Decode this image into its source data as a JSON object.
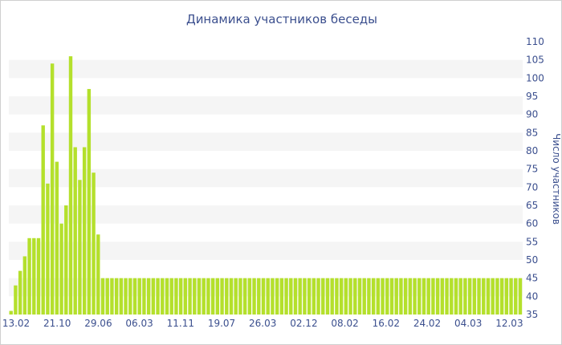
{
  "chart_data": {
    "type": "bar",
    "title": "Динамика участников беседы",
    "xlabel": "",
    "ylabel": "Число участников",
    "ylim": [
      35,
      110
    ],
    "y_ticks": [
      35,
      40,
      45,
      50,
      55,
      60,
      65,
      70,
      75,
      80,
      85,
      90,
      95,
      100,
      105,
      110
    ],
    "y_axis_position": "right",
    "grid": "alternating horizontal bands",
    "x_ticks": [
      "13.02",
      "21.10",
      "29.06",
      "06.03",
      "11.11",
      "19.07",
      "26.03",
      "02.12",
      "08.02",
      "16.02",
      "24.02",
      "04.03",
      "12.03"
    ],
    "values": [
      36,
      43,
      47,
      51,
      56,
      56,
      56,
      87,
      71,
      104,
      77,
      60,
      65,
      106,
      81,
      72,
      81,
      97,
      74,
      57,
      45,
      45,
      45,
      45,
      45,
      45,
      45,
      45,
      45,
      45,
      45,
      45,
      45,
      45,
      45,
      45,
      45,
      45,
      45,
      45,
      45,
      45,
      45,
      45,
      45,
      45,
      45,
      45,
      45,
      45,
      45,
      45,
      45,
      45,
      45,
      45,
      45,
      45,
      45,
      45,
      45,
      45,
      45,
      45,
      45,
      45,
      45,
      45,
      45,
      45,
      45,
      45,
      45,
      45,
      45,
      45,
      45,
      45,
      45,
      45,
      45,
      45,
      45,
      45,
      45,
      45,
      45,
      45,
      45,
      45,
      45,
      45,
      45,
      45,
      45,
      45,
      45,
      45,
      45,
      45,
      45,
      45,
      45,
      45,
      45,
      45,
      45,
      45,
      45,
      45,
      45,
      45
    ],
    "bar_color": "#b4e02c",
    "band_color": "#f5f5f5",
    "text_color": "#3b4f8e"
  }
}
